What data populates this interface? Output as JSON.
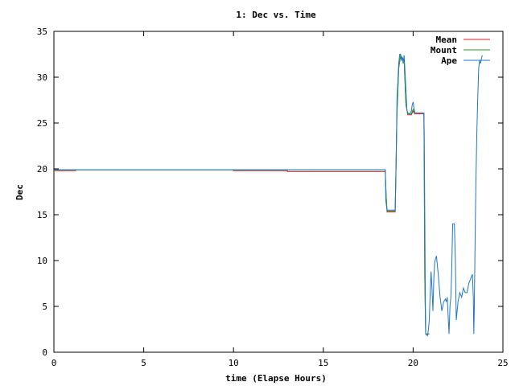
{
  "chart_data": {
    "type": "line",
    "title": "1: Dec vs. Time",
    "xlabel": "time (Elapse Hours)",
    "ylabel": "Dec",
    "xlim": [
      0,
      25
    ],
    "ylim": [
      0,
      35
    ],
    "xticks": [
      0,
      5,
      10,
      15,
      20,
      25
    ],
    "yticks": [
      0,
      5,
      10,
      15,
      20,
      25,
      30,
      35
    ],
    "grid": false,
    "legend_position": "top-right",
    "series": [
      {
        "name": "Mean",
        "color": "#e0201e",
        "points": [
          [
            0,
            19.8
          ],
          [
            1.2,
            19.8
          ],
          [
            1.2,
            19.9
          ],
          [
            10,
            19.9
          ],
          [
            10,
            19.8
          ],
          [
            13,
            19.8
          ],
          [
            13,
            19.7
          ],
          [
            18.45,
            19.7
          ],
          [
            18.5,
            17
          ],
          [
            18.55,
            15.3
          ],
          [
            19.0,
            15.3
          ],
          [
            19.1,
            26
          ],
          [
            19.2,
            31
          ],
          [
            19.3,
            32.3
          ],
          [
            19.4,
            32.0
          ],
          [
            19.5,
            31.8
          ],
          [
            19.6,
            27
          ],
          [
            19.7,
            25.9
          ],
          [
            19.9,
            25.9
          ],
          [
            20.0,
            26.3
          ],
          [
            20.1,
            26.0
          ],
          [
            20.6,
            26.0
          ],
          [
            20.62,
            20
          ],
          [
            20.65,
            8
          ],
          [
            20.7,
            2.0
          ],
          [
            20.9,
            2.0
          ]
        ]
      },
      {
        "name": "Mount",
        "color": "#1fa01f",
        "points": [
          [
            0,
            19.9
          ],
          [
            18.45,
            19.9
          ],
          [
            18.5,
            17
          ],
          [
            18.55,
            15.4
          ],
          [
            19.0,
            15.4
          ],
          [
            19.1,
            26
          ],
          [
            19.2,
            31
          ],
          [
            19.3,
            32.4
          ],
          [
            19.4,
            32.1
          ],
          [
            19.5,
            31.9
          ],
          [
            19.6,
            27
          ],
          [
            19.7,
            26.0
          ],
          [
            19.9,
            26.0
          ],
          [
            20.0,
            26.5
          ],
          [
            20.1,
            26.1
          ],
          [
            20.6,
            26.1
          ],
          [
            20.62,
            20
          ],
          [
            20.65,
            8
          ],
          [
            20.7,
            2.0
          ],
          [
            20.9,
            2.0
          ]
        ]
      },
      {
        "name": "Ape",
        "color": "#1f78c8",
        "points": [
          [
            0,
            19.9
          ],
          [
            18.45,
            19.9
          ],
          [
            18.48,
            16.5
          ],
          [
            18.55,
            15.5
          ],
          [
            19.0,
            15.5
          ],
          [
            19.05,
            20
          ],
          [
            19.1,
            27.5
          ],
          [
            19.15,
            29.5
          ],
          [
            19.2,
            31.5
          ],
          [
            19.25,
            32.5
          ],
          [
            19.3,
            32.5
          ],
          [
            19.35,
            31.8
          ],
          [
            19.4,
            32.2
          ],
          [
            19.45,
            31.5
          ],
          [
            19.5,
            32.4
          ],
          [
            19.55,
            30.5
          ],
          [
            19.6,
            28.5
          ],
          [
            19.65,
            26.5
          ],
          [
            19.7,
            26.1
          ],
          [
            19.8,
            26.0
          ],
          [
            19.9,
            26.3
          ],
          [
            19.95,
            27.0
          ],
          [
            20.0,
            27.3
          ],
          [
            20.05,
            26.6
          ],
          [
            20.1,
            26.1
          ],
          [
            20.4,
            26.1
          ],
          [
            20.6,
            26.1
          ],
          [
            20.62,
            24
          ],
          [
            20.65,
            15
          ],
          [
            20.68,
            6
          ],
          [
            20.7,
            2.0
          ],
          [
            20.8,
            1.8
          ],
          [
            20.85,
            2.5
          ],
          [
            20.9,
            3.5
          ],
          [
            20.95,
            6.5
          ],
          [
            21.0,
            8.8
          ],
          [
            21.05,
            7.0
          ],
          [
            21.1,
            4.5
          ],
          [
            21.15,
            8.0
          ],
          [
            21.2,
            9.8
          ],
          [
            21.25,
            10.2
          ],
          [
            21.3,
            10.5
          ],
          [
            21.35,
            9.5
          ],
          [
            21.4,
            8.5
          ],
          [
            21.5,
            6.0
          ],
          [
            21.6,
            4.5
          ],
          [
            21.7,
            5.5
          ],
          [
            21.8,
            5.8
          ],
          [
            21.85,
            5.5
          ],
          [
            21.9,
            6.0
          ],
          [
            21.95,
            4.0
          ],
          [
            22.0,
            2.0
          ],
          [
            22.05,
            5.0
          ],
          [
            22.1,
            6.0
          ],
          [
            22.15,
            9.0
          ],
          [
            22.2,
            14.0
          ],
          [
            22.3,
            14.0
          ],
          [
            22.35,
            10.0
          ],
          [
            22.4,
            3.5
          ],
          [
            22.5,
            5.5
          ],
          [
            22.6,
            6.5
          ],
          [
            22.7,
            6.0
          ],
          [
            22.8,
            7.0
          ],
          [
            22.9,
            6.5
          ],
          [
            23.0,
            6.5
          ],
          [
            23.1,
            7.5
          ],
          [
            23.2,
            8.0
          ],
          [
            23.3,
            8.5
          ],
          [
            23.35,
            6.0
          ],
          [
            23.38,
            2.0
          ],
          [
            23.4,
            4.0
          ],
          [
            23.45,
            12.0
          ],
          [
            23.5,
            19.0
          ],
          [
            23.55,
            24.0
          ],
          [
            23.6,
            28.0
          ],
          [
            23.65,
            31.0
          ],
          [
            23.7,
            31.8
          ],
          [
            23.75,
            31.5
          ],
          [
            23.8,
            32.0
          ],
          [
            23.85,
            32.4
          ]
        ]
      }
    ]
  }
}
